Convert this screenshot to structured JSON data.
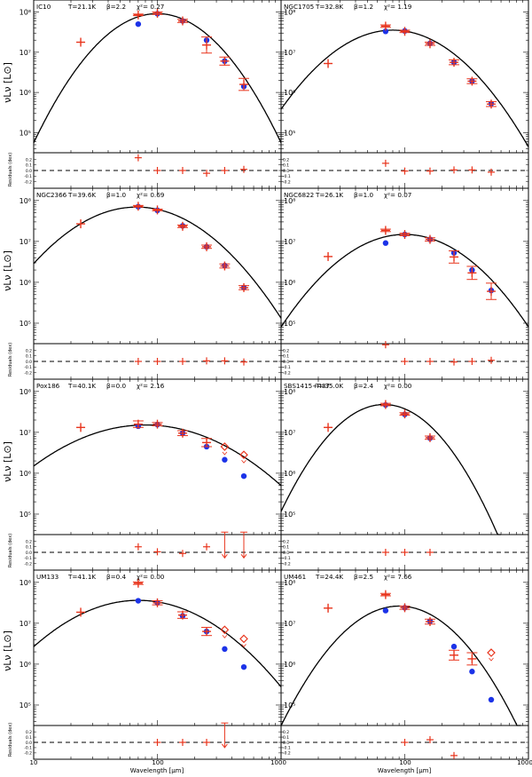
{
  "figure": {
    "xlabel": "Wavelength [μm]",
    "ylabel_main": "νLν [L⊙]",
    "ylabel_resid": "Residuals (dex)",
    "xticks": [
      "10",
      "100",
      "1000"
    ],
    "yticks": [
      "10⁵",
      "10⁶",
      "10⁷",
      "10⁸"
    ],
    "resid_ticks": [
      "0.2",
      "0.1",
      "0.0",
      "-0.1",
      "-0.2"
    ]
  },
  "chart_data": [
    {
      "type": "scatter",
      "name": "IC10",
      "annotation": {
        "name": "IC10",
        "T": "T=21.1K",
        "beta": "β=2.2",
        "chi2": "χ²= 0.27"
      },
      "xlim": [
        10,
        1000
      ],
      "ylim_log10": [
        4.5,
        8.3
      ],
      "model_peak": {
        "lambda": 100,
        "log_lum": 7.96,
        "width": 0.26
      },
      "observed": [
        {
          "x": 24,
          "y": 7.25,
          "err": 0.0
        },
        {
          "x": 70,
          "y": 7.93,
          "err": 0.02
        },
        {
          "x": 100,
          "y": 7.97,
          "err": 0.03
        },
        {
          "x": 160,
          "y": 7.78,
          "err": 0.04
        },
        {
          "x": 250,
          "y": 7.18,
          "err": 0.2
        },
        {
          "x": 350,
          "y": 6.78,
          "err": 0.1
        },
        {
          "x": 500,
          "y": 6.2,
          "err": 0.15
        }
      ],
      "upper_limits": [],
      "model_points": [
        {
          "x": 70,
          "y": 7.7
        },
        {
          "x": 100,
          "y": 7.96
        },
        {
          "x": 160,
          "y": 7.78
        },
        {
          "x": 250,
          "y": 7.3
        },
        {
          "x": 350,
          "y": 6.78
        },
        {
          "x": 500,
          "y": 6.15
        }
      ],
      "residuals": [
        {
          "x": 70,
          "y": 0.23
        },
        {
          "x": 100,
          "y": 0.0
        },
        {
          "x": 160,
          "y": 0.0
        },
        {
          "x": 250,
          "y": -0.05
        },
        {
          "x": 350,
          "y": 0.0
        },
        {
          "x": 500,
          "y": 0.02
        }
      ],
      "resid_arrows": []
    },
    {
      "type": "scatter",
      "name": "NGC1705",
      "annotation": {
        "name": "NGC1705",
        "T": "T=32.8K",
        "beta": "β=1.2",
        "chi2": "χ²= 1.19"
      },
      "xlim": [
        10,
        1000
      ],
      "ylim_log10": [
        4.5,
        8.3
      ],
      "model_peak": {
        "lambda": 80,
        "log_lum": 7.55,
        "width": 0.3
      },
      "observed": [
        {
          "x": 24,
          "y": 6.72,
          "err": 0.0
        },
        {
          "x": 70,
          "y": 7.65,
          "err": 0.03
        },
        {
          "x": 100,
          "y": 7.52,
          "err": 0.03
        },
        {
          "x": 160,
          "y": 7.21,
          "err": 0.04
        },
        {
          "x": 250,
          "y": 6.75,
          "err": 0.06
        },
        {
          "x": 350,
          "y": 6.28,
          "err": 0.06
        },
        {
          "x": 500,
          "y": 5.71,
          "err": 0.06
        }
      ],
      "upper_limits": [],
      "model_points": [
        {
          "x": 70,
          "y": 7.52
        },
        {
          "x": 100,
          "y": 7.53
        },
        {
          "x": 160,
          "y": 7.22
        },
        {
          "x": 250,
          "y": 6.75
        },
        {
          "x": 350,
          "y": 6.28
        },
        {
          "x": 500,
          "y": 5.72
        }
      ],
      "residuals": [
        {
          "x": 70,
          "y": 0.13
        },
        {
          "x": 100,
          "y": -0.01
        },
        {
          "x": 160,
          "y": -0.01
        },
        {
          "x": 250,
          "y": 0.01
        },
        {
          "x": 350,
          "y": 0.01
        },
        {
          "x": 500,
          "y": -0.03
        }
      ],
      "resid_arrows": []
    },
    {
      "type": "scatter",
      "name": "NGC2366",
      "annotation": {
        "name": "NGC2366",
        "T": "T=39.6K",
        "beta": "β=1.0",
        "chi2": "χ²= 0.69"
      },
      "xlim": [
        10,
        1000
      ],
      "ylim_log10": [
        4.5,
        8.3
      ],
      "model_peak": {
        "lambda": 68,
        "log_lum": 7.84,
        "width": 0.33
      },
      "observed": [
        {
          "x": 24,
          "y": 7.43,
          "err": 0.0
        },
        {
          "x": 70,
          "y": 7.86,
          "err": 0.02
        },
        {
          "x": 100,
          "y": 7.77,
          "err": 0.02
        },
        {
          "x": 160,
          "y": 7.37,
          "err": 0.03
        },
        {
          "x": 250,
          "y": 6.87,
          "err": 0.04
        },
        {
          "x": 350,
          "y": 6.4,
          "err": 0.05
        },
        {
          "x": 500,
          "y": 5.87,
          "err": 0.05
        }
      ],
      "upper_limits": [],
      "model_points": [
        {
          "x": 70,
          "y": 7.85
        },
        {
          "x": 100,
          "y": 7.76
        },
        {
          "x": 160,
          "y": 7.38
        },
        {
          "x": 250,
          "y": 6.87
        },
        {
          "x": 350,
          "y": 6.41
        },
        {
          "x": 500,
          "y": 5.87
        }
      ],
      "residuals": [
        {
          "x": 70,
          "y": 0.0
        },
        {
          "x": 100,
          "y": 0.0
        },
        {
          "x": 160,
          "y": 0.0
        },
        {
          "x": 250,
          "y": 0.01
        },
        {
          "x": 350,
          "y": 0.01
        },
        {
          "x": 500,
          "y": -0.01
        }
      ],
      "resid_arrows": []
    },
    {
      "type": "scatter",
      "name": "NGC6822",
      "annotation": {
        "name": "NGC6822",
        "T": "T=26.1K",
        "beta": "β=1.0",
        "chi2": "χ²= 0.07"
      },
      "xlim": [
        10,
        1000
      ],
      "ylim_log10": [
        4.5,
        8.3
      ],
      "model_peak": {
        "lambda": 100,
        "log_lum": 7.17,
        "width": 0.31
      },
      "observed": [
        {
          "x": 24,
          "y": 6.63,
          "err": 0.0
        },
        {
          "x": 70,
          "y": 7.27,
          "err": 0.03
        },
        {
          "x": 100,
          "y": 7.17,
          "err": 0.03
        },
        {
          "x": 160,
          "y": 7.05,
          "err": 0.04
        },
        {
          "x": 250,
          "y": 6.62,
          "err": 0.15
        },
        {
          "x": 350,
          "y": 6.23,
          "err": 0.16
        },
        {
          "x": 500,
          "y": 5.78,
          "err": 0.2
        }
      ],
      "upper_limits": [],
      "model_points": [
        {
          "x": 70,
          "y": 6.96
        },
        {
          "x": 100,
          "y": 7.17
        },
        {
          "x": 160,
          "y": 7.05
        },
        {
          "x": 250,
          "y": 6.72
        },
        {
          "x": 350,
          "y": 6.3
        },
        {
          "x": 500,
          "y": 5.8
        }
      ],
      "residuals": [
        {
          "x": 70,
          "y": 0.3
        },
        {
          "x": 100,
          "y": 0.0
        },
        {
          "x": 160,
          "y": 0.0
        },
        {
          "x": 250,
          "y": -0.01
        },
        {
          "x": 350,
          "y": 0.0
        },
        {
          "x": 500,
          "y": 0.02
        }
      ],
      "resid_arrows": []
    },
    {
      "type": "scatter",
      "name": "Pox186",
      "annotation": {
        "name": "Pox186",
        "T": "T=40.1K",
        "beta": "β=0.0",
        "chi2": "χ²= 2.16"
      },
      "xlim": [
        10,
        1000
      ],
      "ylim_log10": [
        4.5,
        8.3
      ],
      "model_peak": {
        "lambda": 80,
        "log_lum": 7.18,
        "width": 0.42
      },
      "observed": [
        {
          "x": 24,
          "y": 7.12,
          "err": 0.0
        },
        {
          "x": 70,
          "y": 7.2,
          "err": 0.08
        },
        {
          "x": 100,
          "y": 7.2,
          "err": 0.04
        },
        {
          "x": 160,
          "y": 6.98,
          "err": 0.06
        },
        {
          "x": 250,
          "y": 6.75,
          "err": 0.1
        }
      ],
      "upper_limits": [
        {
          "x": 350,
          "y": 6.65
        },
        {
          "x": 500,
          "y": 6.45
        }
      ],
      "model_points": [
        {
          "x": 70,
          "y": 7.15
        },
        {
          "x": 100,
          "y": 7.19
        },
        {
          "x": 160,
          "y": 6.98
        },
        {
          "x": 250,
          "y": 6.65
        },
        {
          "x": 350,
          "y": 6.33
        },
        {
          "x": 500,
          "y": 5.93
        }
      ],
      "residuals": [
        {
          "x": 70,
          "y": 0.1
        },
        {
          "x": 100,
          "y": 0.01
        },
        {
          "x": 160,
          "y": -0.02
        },
        {
          "x": 250,
          "y": 0.1
        }
      ],
      "resid_arrows": [
        {
          "x": 350,
          "y": 0.3
        },
        {
          "x": 500,
          "y": 0.3
        }
      ]
    },
    {
      "type": "scatter",
      "name": "SBS1415+437",
      "annotation": {
        "name": "SBS1415+437",
        "T": "T=35.0K",
        "beta": "β=2.4",
        "chi2": "χ²= 0.00"
      },
      "xlim": [
        10,
        1000
      ],
      "ylim_log10": [
        4.5,
        8.3
      ],
      "model_peak": {
        "lambda": 68,
        "log_lum": 7.68,
        "width": 0.24
      },
      "observed": [
        {
          "x": 24,
          "y": 7.12,
          "err": 0.0
        },
        {
          "x": 70,
          "y": 7.68,
          "err": 0.03
        },
        {
          "x": 100,
          "y": 7.45,
          "err": 0.03
        },
        {
          "x": 160,
          "y": 6.87,
          "err": 0.04
        }
      ],
      "upper_limits": [],
      "model_points": [
        {
          "x": 70,
          "y": 7.67
        },
        {
          "x": 100,
          "y": 7.44
        },
        {
          "x": 160,
          "y": 6.86
        }
      ],
      "residuals": [
        {
          "x": 70,
          "y": 0.0
        },
        {
          "x": 100,
          "y": 0.0
        },
        {
          "x": 160,
          "y": 0.0
        }
      ],
      "resid_arrows": []
    },
    {
      "type": "scatter",
      "name": "UM133",
      "annotation": {
        "name": "UM133",
        "T": "T=41.1K",
        "beta": "β=0.4",
        "chi2": "χ²= 0.00"
      },
      "xlim": [
        10,
        1000
      ],
      "ylim_log10": [
        4.5,
        8.3
      ],
      "model_peak": {
        "lambda": 70,
        "log_lum": 7.56,
        "width": 0.37
      },
      "observed": [
        {
          "x": 24,
          "y": 7.27,
          "err": 0.0
        },
        {
          "x": 70,
          "y": 7.98,
          "err": 0.03
        },
        {
          "x": 100,
          "y": 7.5,
          "err": 0.05
        },
        {
          "x": 160,
          "y": 7.2,
          "err": 0.08
        },
        {
          "x": 250,
          "y": 6.8,
          "err": 0.1
        }
      ],
      "upper_limits": [
        {
          "x": 350,
          "y": 6.84
        },
        {
          "x": 500,
          "y": 6.62
        }
      ],
      "model_points": [
        {
          "x": 70,
          "y": 7.55
        },
        {
          "x": 100,
          "y": 7.5
        },
        {
          "x": 160,
          "y": 7.18
        },
        {
          "x": 250,
          "y": 6.8
        },
        {
          "x": 350,
          "y": 6.37
        },
        {
          "x": 500,
          "y": 5.93
        }
      ],
      "residuals": [
        {
          "x": 100,
          "y": 0.0
        },
        {
          "x": 160,
          "y": 0.0
        },
        {
          "x": 250,
          "y": 0.0
        }
      ],
      "resid_arrows": [
        {
          "x": 350,
          "y": 0.3
        }
      ]
    },
    {
      "type": "scatter",
      "name": "UM461",
      "annotation": {
        "name": "UM461",
        "T": "T=24.4K",
        "beta": "β=2.5",
        "chi2": "χ²= 7.66"
      },
      "xlim": [
        10,
        1000
      ],
      "ylim_log10": [
        4.5,
        8.3
      ],
      "model_peak": {
        "lambda": 90,
        "log_lum": 7.42,
        "width": 0.26
      },
      "observed": [
        {
          "x": 24,
          "y": 7.37,
          "err": 0.0
        },
        {
          "x": 70,
          "y": 7.7,
          "err": 0.03
        },
        {
          "x": 100,
          "y": 7.38,
          "err": 0.04
        },
        {
          "x": 160,
          "y": 7.04,
          "err": 0.06
        },
        {
          "x": 250,
          "y": 6.22,
          "err": 0.12
        },
        {
          "x": 350,
          "y": 6.13,
          "err": 0.15
        }
      ],
      "upper_limits": [
        {
          "x": 500,
          "y": 6.28
        }
      ],
      "model_points": [
        {
          "x": 70,
          "y": 7.31
        },
        {
          "x": 100,
          "y": 7.38
        },
        {
          "x": 160,
          "y": 7.05
        },
        {
          "x": 250,
          "y": 6.43
        },
        {
          "x": 350,
          "y": 5.82
        },
        {
          "x": 500,
          "y": 5.13
        }
      ],
      "residuals": [
        {
          "x": 100,
          "y": 0.0
        },
        {
          "x": 160,
          "y": 0.05
        },
        {
          "x": 250,
          "y": -0.25
        }
      ],
      "resid_arrows": []
    }
  ]
}
